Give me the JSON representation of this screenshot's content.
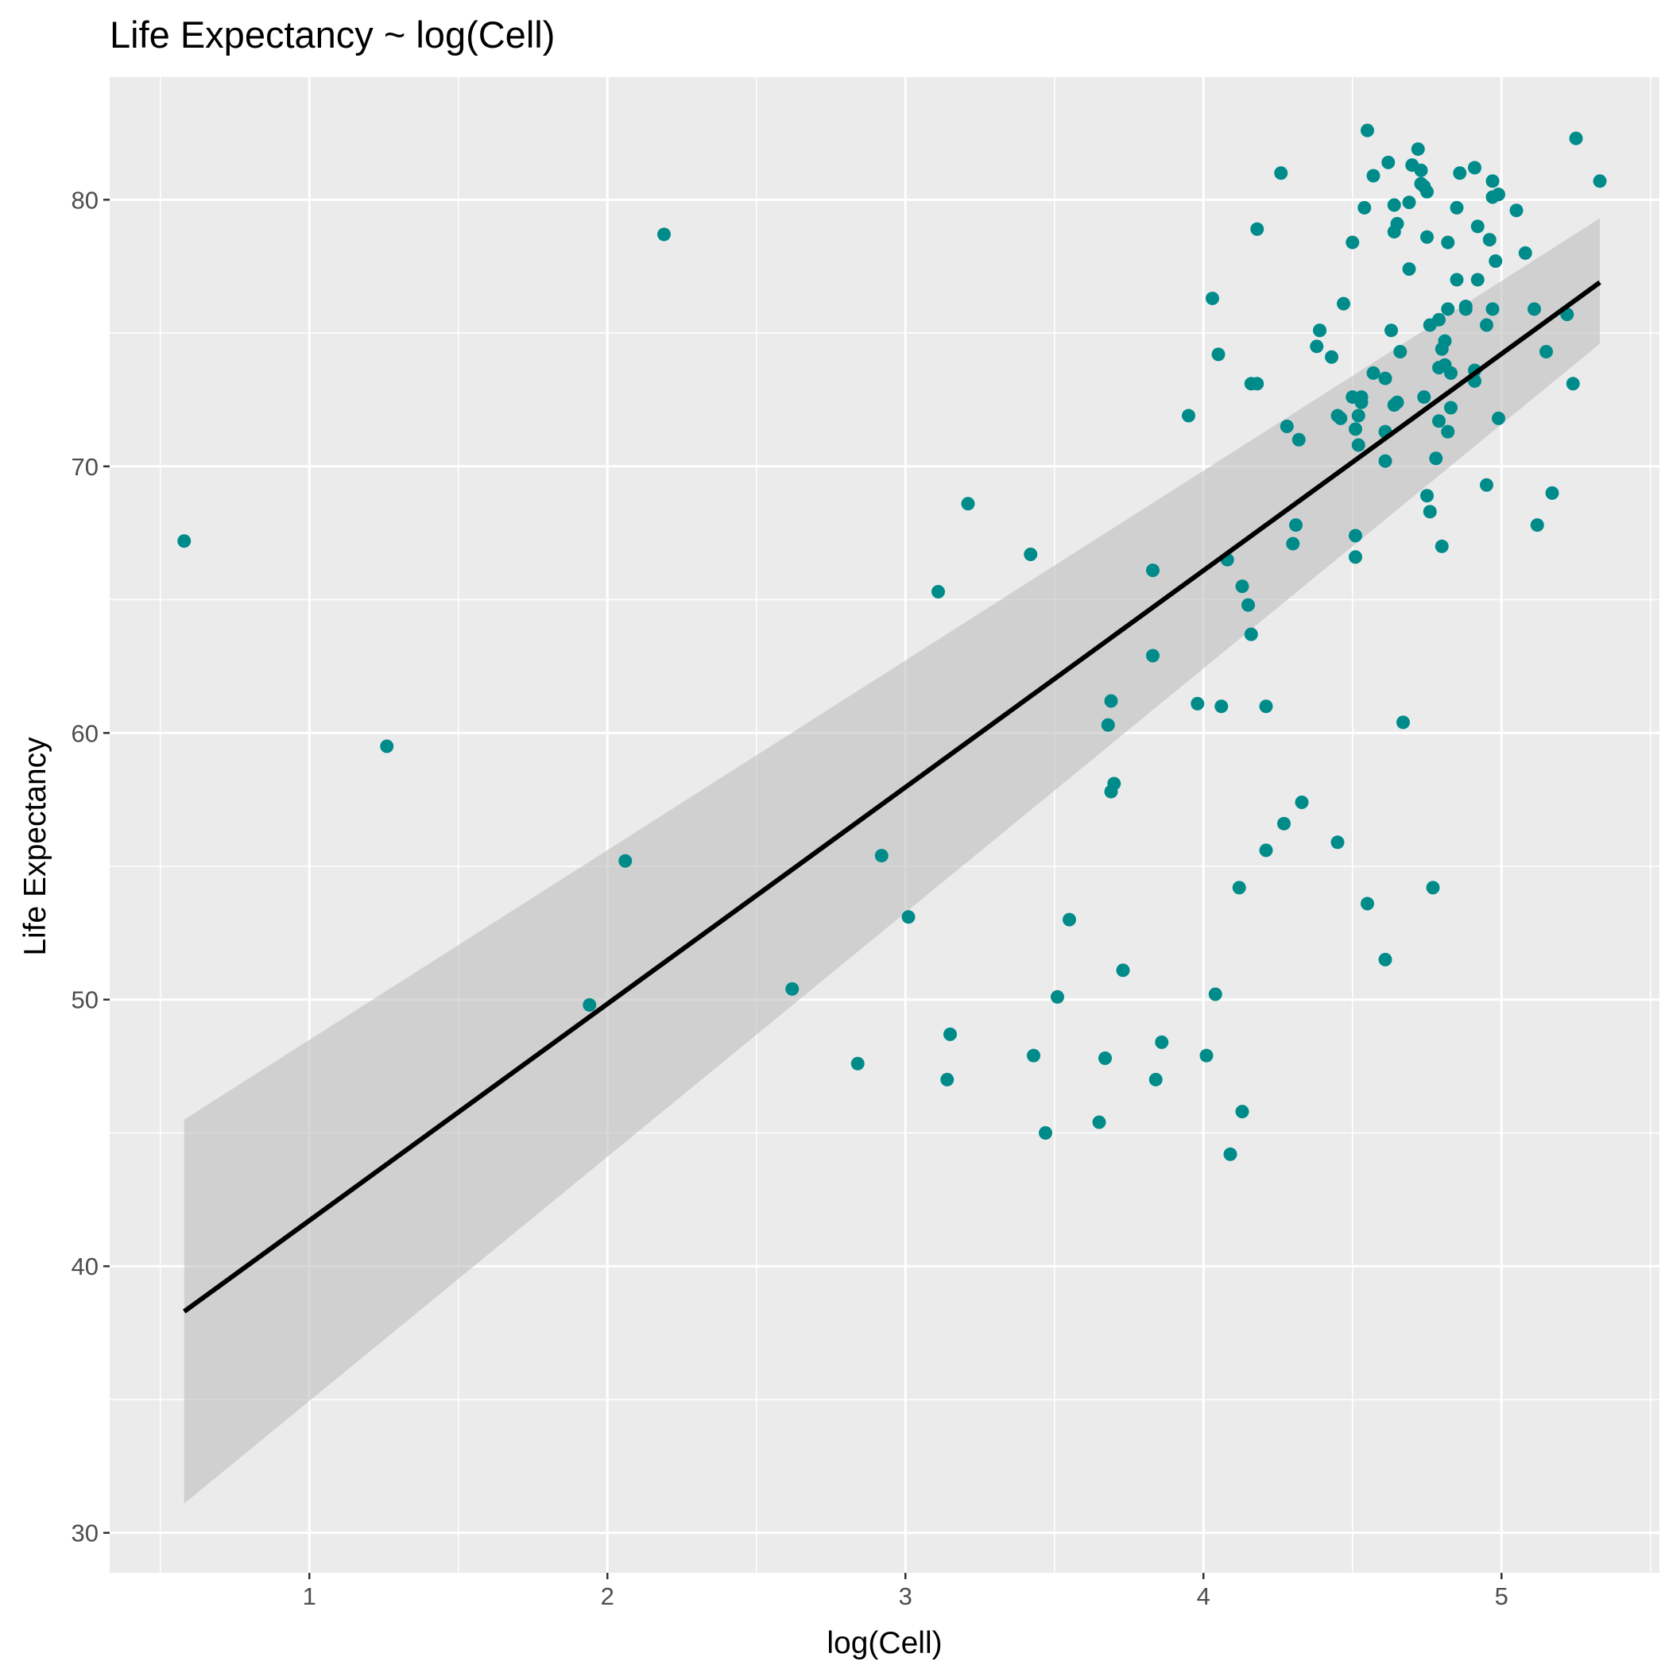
{
  "chart_data": {
    "type": "scatter",
    "title": "Life Expectancy ~ log(Cell)",
    "xlabel": "log(Cell)",
    "ylabel": "Life Expectancy",
    "xlim": [
      0.33,
      5.53
    ],
    "ylim": [
      28.5,
      84.6
    ],
    "xticks": [
      1,
      2,
      3,
      4,
      5
    ],
    "yticks": [
      30,
      40,
      50,
      60,
      70,
      80
    ],
    "grid": true,
    "legend": "none",
    "colors": {
      "points": "#008b8b",
      "fit_line": "#000000",
      "ribbon": "#bebebe",
      "panel": "#ebebeb",
      "grid": "#ffffff"
    },
    "fit": {
      "x": [
        0.58,
        5.33
      ],
      "y": [
        38.3,
        76.9
      ],
      "lower": [
        31.1,
        74.6
      ],
      "upper": [
        45.5,
        79.3
      ]
    },
    "points": [
      {
        "x": 0.58,
        "y": 67.2
      },
      {
        "x": 1.26,
        "y": 59.5
      },
      {
        "x": 1.94,
        "y": 49.8
      },
      {
        "x": 2.06,
        "y": 55.2
      },
      {
        "x": 2.19,
        "y": 78.7
      },
      {
        "x": 2.62,
        "y": 50.4
      },
      {
        "x": 2.84,
        "y": 47.6
      },
      {
        "x": 2.92,
        "y": 55.4
      },
      {
        "x": 3.01,
        "y": 53.1
      },
      {
        "x": 3.11,
        "y": 65.3
      },
      {
        "x": 3.14,
        "y": 47.0
      },
      {
        "x": 3.15,
        "y": 48.7
      },
      {
        "x": 3.21,
        "y": 68.6
      },
      {
        "x": 3.42,
        "y": 66.7
      },
      {
        "x": 3.43,
        "y": 47.9
      },
      {
        "x": 3.47,
        "y": 45.0
      },
      {
        "x": 3.51,
        "y": 50.1
      },
      {
        "x": 3.55,
        "y": 53.0
      },
      {
        "x": 3.65,
        "y": 45.4
      },
      {
        "x": 3.67,
        "y": 47.8
      },
      {
        "x": 3.68,
        "y": 60.3
      },
      {
        "x": 3.69,
        "y": 61.2
      },
      {
        "x": 3.69,
        "y": 57.8
      },
      {
        "x": 3.7,
        "y": 58.1
      },
      {
        "x": 3.73,
        "y": 51.1
      },
      {
        "x": 3.83,
        "y": 62.9
      },
      {
        "x": 3.83,
        "y": 66.1
      },
      {
        "x": 3.84,
        "y": 47.0
      },
      {
        "x": 3.86,
        "y": 48.4
      },
      {
        "x": 3.95,
        "y": 71.9
      },
      {
        "x": 3.98,
        "y": 61.1
      },
      {
        "x": 4.01,
        "y": 47.9
      },
      {
        "x": 4.03,
        "y": 76.3
      },
      {
        "x": 4.04,
        "y": 50.2
      },
      {
        "x": 4.05,
        "y": 74.2
      },
      {
        "x": 4.06,
        "y": 61.0
      },
      {
        "x": 4.08,
        "y": 66.5
      },
      {
        "x": 4.09,
        "y": 44.2
      },
      {
        "x": 4.12,
        "y": 54.2
      },
      {
        "x": 4.13,
        "y": 45.8
      },
      {
        "x": 4.13,
        "y": 65.5
      },
      {
        "x": 4.15,
        "y": 64.8
      },
      {
        "x": 4.16,
        "y": 63.7
      },
      {
        "x": 4.16,
        "y": 73.1
      },
      {
        "x": 4.18,
        "y": 73.1
      },
      {
        "x": 4.18,
        "y": 78.9
      },
      {
        "x": 4.21,
        "y": 61.0
      },
      {
        "x": 4.21,
        "y": 55.6
      },
      {
        "x": 4.26,
        "y": 81.0
      },
      {
        "x": 4.27,
        "y": 56.6
      },
      {
        "x": 4.28,
        "y": 71.5
      },
      {
        "x": 4.3,
        "y": 67.1
      },
      {
        "x": 4.31,
        "y": 67.8
      },
      {
        "x": 4.32,
        "y": 71.0
      },
      {
        "x": 4.33,
        "y": 57.4
      },
      {
        "x": 4.38,
        "y": 74.5
      },
      {
        "x": 4.39,
        "y": 75.1
      },
      {
        "x": 4.39,
        "y": 75.1
      },
      {
        "x": 4.43,
        "y": 74.1
      },
      {
        "x": 4.45,
        "y": 71.9
      },
      {
        "x": 4.45,
        "y": 55.9
      },
      {
        "x": 4.46,
        "y": 71.8
      },
      {
        "x": 4.47,
        "y": 76.1
      },
      {
        "x": 4.5,
        "y": 72.6
      },
      {
        "x": 4.5,
        "y": 78.4
      },
      {
        "x": 4.51,
        "y": 71.4
      },
      {
        "x": 4.51,
        "y": 66.6
      },
      {
        "x": 4.51,
        "y": 67.4
      },
      {
        "x": 4.52,
        "y": 70.8
      },
      {
        "x": 4.52,
        "y": 71.9
      },
      {
        "x": 4.53,
        "y": 72.4
      },
      {
        "x": 4.53,
        "y": 72.6
      },
      {
        "x": 4.54,
        "y": 79.7
      },
      {
        "x": 4.55,
        "y": 53.6
      },
      {
        "x": 4.55,
        "y": 82.6
      },
      {
        "x": 4.57,
        "y": 80.9
      },
      {
        "x": 4.57,
        "y": 73.5
      },
      {
        "x": 4.61,
        "y": 70.2
      },
      {
        "x": 4.61,
        "y": 71.3
      },
      {
        "x": 4.61,
        "y": 73.3
      },
      {
        "x": 4.61,
        "y": 51.5
      },
      {
        "x": 4.62,
        "y": 81.4
      },
      {
        "x": 4.63,
        "y": 75.1
      },
      {
        "x": 4.64,
        "y": 72.3
      },
      {
        "x": 4.64,
        "y": 78.8
      },
      {
        "x": 4.64,
        "y": 79.8
      },
      {
        "x": 4.65,
        "y": 72.4
      },
      {
        "x": 4.65,
        "y": 79.1
      },
      {
        "x": 4.66,
        "y": 74.3
      },
      {
        "x": 4.67,
        "y": 60.4
      },
      {
        "x": 4.69,
        "y": 79.9
      },
      {
        "x": 4.69,
        "y": 77.4
      },
      {
        "x": 4.7,
        "y": 81.3
      },
      {
        "x": 4.72,
        "y": 81.9
      },
      {
        "x": 4.73,
        "y": 80.6
      },
      {
        "x": 4.73,
        "y": 81.1
      },
      {
        "x": 4.74,
        "y": 72.6
      },
      {
        "x": 4.74,
        "y": 80.5
      },
      {
        "x": 4.75,
        "y": 80.3
      },
      {
        "x": 4.75,
        "y": 78.6
      },
      {
        "x": 4.75,
        "y": 68.9
      },
      {
        "x": 4.76,
        "y": 75.3
      },
      {
        "x": 4.76,
        "y": 68.3
      },
      {
        "x": 4.77,
        "y": 54.2
      },
      {
        "x": 4.78,
        "y": 70.3
      },
      {
        "x": 4.79,
        "y": 75.5
      },
      {
        "x": 4.79,
        "y": 73.7
      },
      {
        "x": 4.79,
        "y": 71.7
      },
      {
        "x": 4.8,
        "y": 67.0
      },
      {
        "x": 4.8,
        "y": 74.4
      },
      {
        "x": 4.81,
        "y": 74.7
      },
      {
        "x": 4.81,
        "y": 73.8
      },
      {
        "x": 4.82,
        "y": 75.9
      },
      {
        "x": 4.82,
        "y": 78.4
      },
      {
        "x": 4.82,
        "y": 71.3
      },
      {
        "x": 4.83,
        "y": 72.2
      },
      {
        "x": 4.83,
        "y": 73.5
      },
      {
        "x": 4.85,
        "y": 77.0
      },
      {
        "x": 4.85,
        "y": 79.7
      },
      {
        "x": 4.86,
        "y": 81.0
      },
      {
        "x": 4.88,
        "y": 76.0
      },
      {
        "x": 4.88,
        "y": 75.9
      },
      {
        "x": 4.91,
        "y": 81.2
      },
      {
        "x": 4.91,
        "y": 73.6
      },
      {
        "x": 4.91,
        "y": 73.2
      },
      {
        "x": 4.92,
        "y": 77.0
      },
      {
        "x": 4.92,
        "y": 79.0
      },
      {
        "x": 4.95,
        "y": 69.3
      },
      {
        "x": 4.95,
        "y": 75.3
      },
      {
        "x": 4.96,
        "y": 78.5
      },
      {
        "x": 4.97,
        "y": 80.7
      },
      {
        "x": 4.97,
        "y": 80.1
      },
      {
        "x": 4.97,
        "y": 75.9
      },
      {
        "x": 4.98,
        "y": 77.7
      },
      {
        "x": 4.99,
        "y": 80.2
      },
      {
        "x": 4.99,
        "y": 71.8
      },
      {
        "x": 5.05,
        "y": 79.6
      },
      {
        "x": 5.08,
        "y": 78.0
      },
      {
        "x": 5.11,
        "y": 75.9
      },
      {
        "x": 5.12,
        "y": 67.8
      },
      {
        "x": 5.15,
        "y": 74.3
      },
      {
        "x": 5.17,
        "y": 69.0
      },
      {
        "x": 5.22,
        "y": 75.7
      },
      {
        "x": 5.24,
        "y": 73.1
      },
      {
        "x": 5.25,
        "y": 82.3
      },
      {
        "x": 5.33,
        "y": 80.7
      }
    ]
  }
}
